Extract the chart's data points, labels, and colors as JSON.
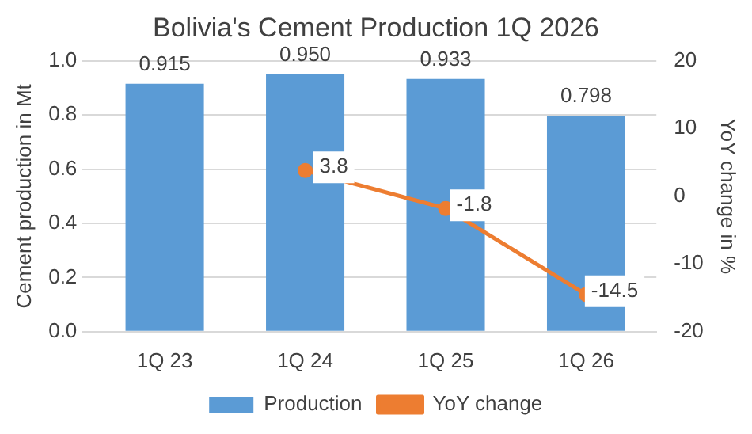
{
  "chart_data": {
    "type": "bar",
    "title": "Bolivia's Cement Production 1Q 2026",
    "ylabel": "Cement production in Mt",
    "y2label": "YoY change in %",
    "categories": [
      "1Q 23",
      "1Q 24",
      "1Q 25",
      "1Q 26"
    ],
    "series": [
      {
        "name": "Production",
        "color": "#5b9bd5",
        "values": [
          0.915,
          0.95,
          0.933,
          0.798
        ],
        "value_labels": [
          "0.915",
          "0.950",
          "0.933",
          "0.798"
        ]
      },
      {
        "name": "YoY change",
        "type": "line",
        "axis": "y2",
        "color": "#ed7d31",
        "marker": "circle",
        "values": [
          null,
          3.8,
          -1.8,
          -14.5
        ],
        "value_labels": [
          null,
          "3.8",
          "-1.8",
          "-14.5"
        ]
      }
    ],
    "ylim": [
      0,
      1.0
    ],
    "yticks": [
      {
        "value": 0,
        "label": "0.0"
      },
      0.2,
      0.4,
      0.6,
      0.8,
      {
        "value": 1.0,
        "label": "1.0"
      }
    ],
    "y2lim": [
      -20,
      20
    ],
    "y2ticks": [
      -20,
      -10,
      0,
      10,
      20
    ],
    "grid": "y",
    "legend": "bottom"
  }
}
